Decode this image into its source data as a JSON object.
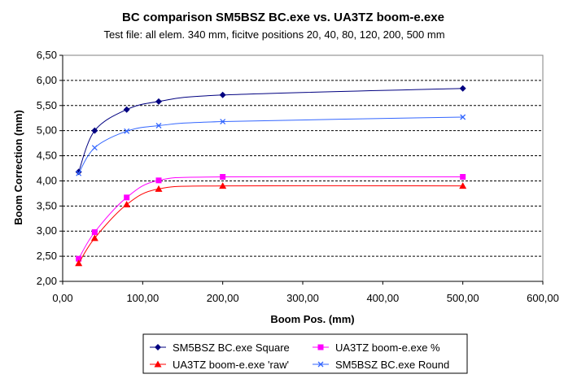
{
  "chart_data": {
    "type": "line",
    "title": "BC comparison SM5BSZ BC.exe vs. UA3TZ boom-e.exe",
    "subtitle": "Test file: all elem. 340 mm, ficitve positions 20, 40, 80, 120, 200, 500 mm",
    "xlabel": "Boom Pos. (mm)",
    "ylabel": "Boom Correction (mm)",
    "xlim": [
      0,
      600
    ],
    "ylim": [
      2,
      6.5
    ],
    "xticks": [
      "0,00",
      "100,00",
      "200,00",
      "300,00",
      "400,00",
      "500,00",
      "600,00"
    ],
    "yticks": [
      "2,00",
      "2,50",
      "3,00",
      "3,50",
      "4,00",
      "4,50",
      "5,00",
      "5,50",
      "6,00",
      "6,50"
    ],
    "grid": "horizontal dashed",
    "legend_position": "bottom",
    "x": [
      20,
      40,
      80,
      120,
      200,
      500
    ],
    "series": [
      {
        "name": "SM5BSZ BC.exe Square",
        "color": "#000080",
        "marker": "diamond",
        "values": [
          4.18,
          5.0,
          5.42,
          5.58,
          5.71,
          5.84
        ]
      },
      {
        "name": "UA3TZ boom-e.exe %",
        "color": "#FF00FF",
        "marker": "square",
        "values": [
          2.45,
          2.98,
          3.67,
          4.01,
          4.08,
          4.08
        ]
      },
      {
        "name": "UA3TZ boom-e.exe 'raw'",
        "color": "#FF0000",
        "marker": "triangle",
        "values": [
          2.36,
          2.86,
          3.53,
          3.84,
          3.9,
          3.9
        ]
      },
      {
        "name": "SM5BSZ BC.exe Round",
        "color": "#3366FF",
        "marker": "x",
        "values": [
          4.15,
          4.66,
          4.99,
          5.1,
          5.18,
          5.27
        ]
      }
    ]
  }
}
